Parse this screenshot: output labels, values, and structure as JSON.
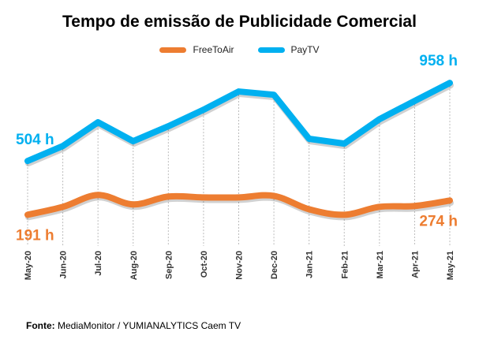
{
  "chart_data": {
    "type": "line",
    "title": "Tempo de emissão de Publicidade Comercial",
    "xlabel": "",
    "ylabel": "",
    "ylim": [
      0,
      1000
    ],
    "grid": "vertical dotted",
    "legend_position": "top-center",
    "categories": [
      "May-20",
      "Jun-20",
      "Jul-20",
      "Aug-20",
      "Sep-20",
      "Oct-20",
      "Nov-20",
      "Dec-20",
      "Jan-21",
      "Feb-21",
      "Mar-21",
      "Apr-21",
      "May-21"
    ],
    "series": [
      {
        "name": "FreeToAir",
        "color": "#ED7D31",
        "smooth": true,
        "values": [
          191,
          237,
          306,
          251,
          297,
          292,
          292,
          301,
          223,
          191,
          237,
          242,
          274
        ],
        "labels": {
          "first": "191 h",
          "last": "274 h"
        }
      },
      {
        "name": "PayTV",
        "color": "#00B0F0",
        "smooth": false,
        "values": [
          504,
          591,
          729,
          619,
          706,
          802,
          908,
          889,
          633,
          605,
          747,
          853,
          958
        ],
        "labels": {
          "first": "504 h",
          "last": "958 h"
        }
      }
    ]
  },
  "source": {
    "label": "Fonte:",
    "text": "MediaMonitor / YUMIANALYTICS Caem TV"
  }
}
